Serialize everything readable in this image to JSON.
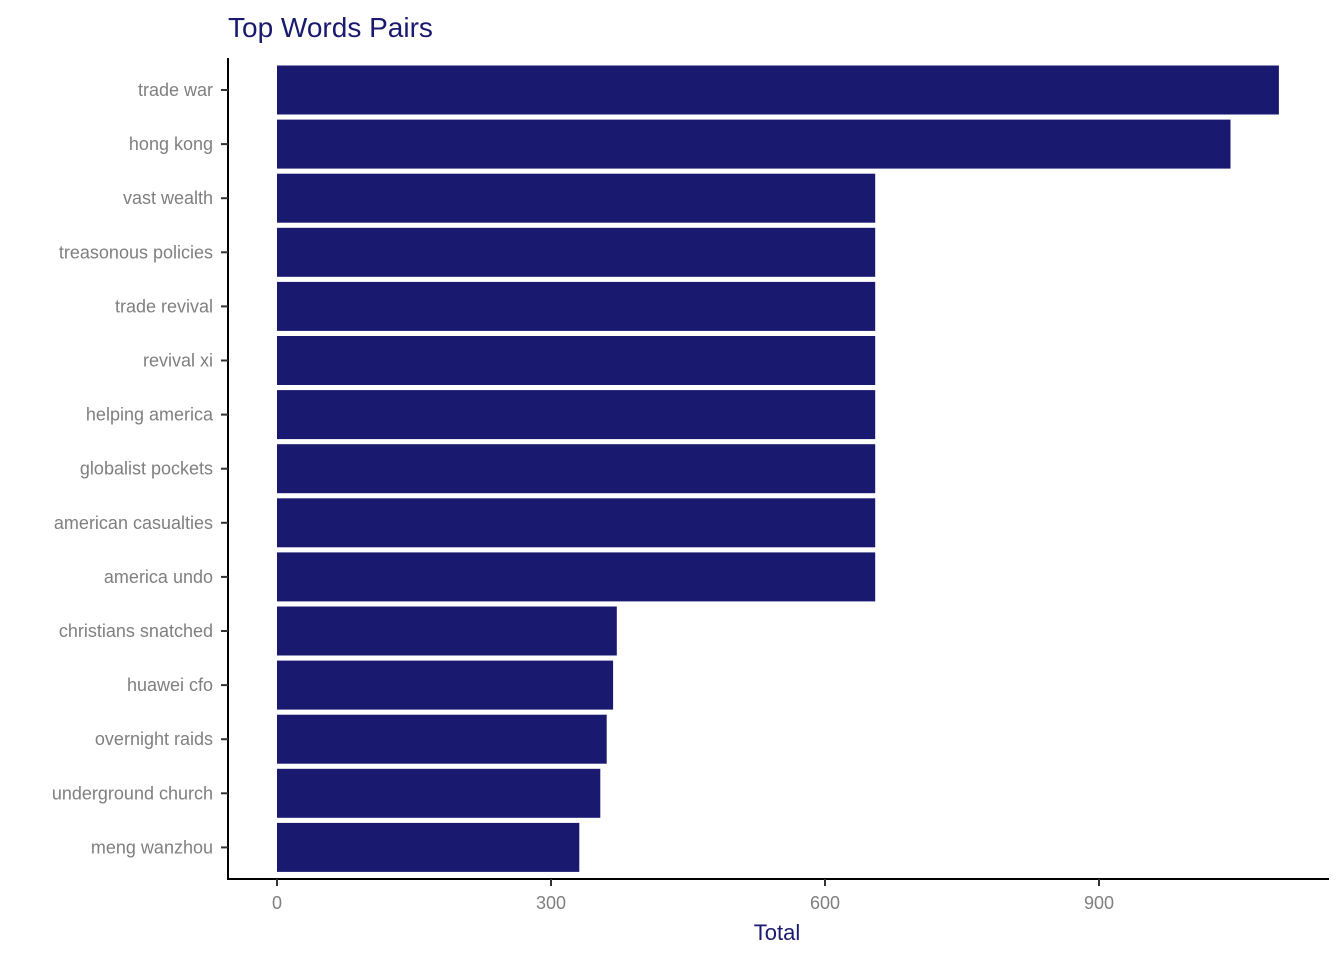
{
  "colors": {
    "bar": "#191970",
    "title": "#191970",
    "tick_text": "#7f7f7f",
    "axis": "#000000"
  },
  "chart_data": {
    "type": "bar",
    "orientation": "horizontal",
    "title": "Top Words Pairs",
    "xlabel": "Total",
    "ylabel": "",
    "xlim": [
      0,
      1150
    ],
    "xticks": [
      0,
      300,
      600,
      900
    ],
    "grid": false,
    "categories": [
      "trade war",
      "hong kong",
      "vast wealth",
      "treasonous policies",
      "trade revival",
      "revival xi",
      "helping america",
      "globalist pockets",
      "american casualties",
      "america undo",
      "christians snatched",
      "huawei cfo",
      "overnight raids",
      "underground church",
      "meng wanzhou"
    ],
    "values": [
      1097,
      1044,
      655,
      655,
      655,
      655,
      655,
      655,
      655,
      655,
      372,
      368,
      361,
      354,
      331
    ]
  }
}
